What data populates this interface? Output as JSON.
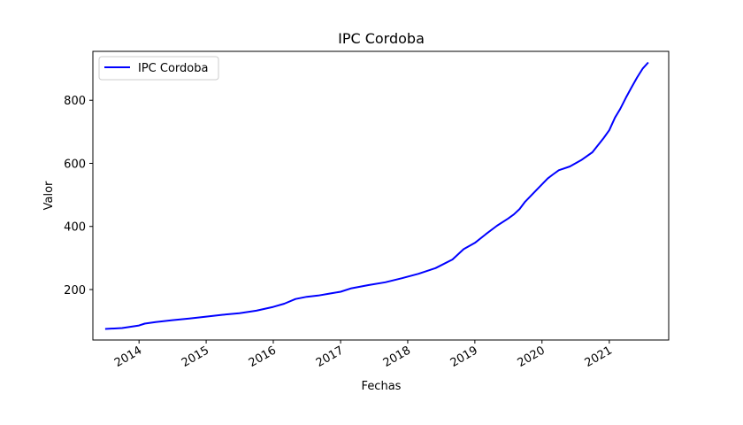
{
  "chart_data": {
    "type": "line",
    "title": "IPC Cordoba",
    "xlabel": "Fechas",
    "ylabel": "Valor",
    "x_tick_labels": [
      "2014",
      "2015",
      "2016",
      "2017",
      "2018",
      "2019",
      "2020",
      "2021"
    ],
    "y_ticks": [
      200,
      400,
      600,
      800
    ],
    "xlim": [
      "2013-04-25",
      "2021-11-20"
    ],
    "ylim": [
      40,
      955
    ],
    "grid": false,
    "legend": "top-left",
    "colors": {
      "line": "#0000ff"
    },
    "series": [
      {
        "name": "IPC Cordoba",
        "points": [
          [
            "2013-07-01",
            75
          ],
          [
            "2013-10-01",
            78
          ],
          [
            "2014-01-01",
            86
          ],
          [
            "2014-02-01",
            92
          ],
          [
            "2014-04-01",
            97
          ],
          [
            "2014-07-01",
            103
          ],
          [
            "2014-10-01",
            108
          ],
          [
            "2015-01-01",
            114
          ],
          [
            "2015-04-01",
            120
          ],
          [
            "2015-07-01",
            125
          ],
          [
            "2015-10-01",
            133
          ],
          [
            "2016-01-01",
            145
          ],
          [
            "2016-03-01",
            155
          ],
          [
            "2016-05-01",
            170
          ],
          [
            "2016-07-01",
            177
          ],
          [
            "2016-09-01",
            181
          ],
          [
            "2016-11-01",
            187
          ],
          [
            "2017-01-01",
            193
          ],
          [
            "2017-03-01",
            204
          ],
          [
            "2017-06-01",
            214
          ],
          [
            "2017-09-01",
            223
          ],
          [
            "2017-12-01",
            236
          ],
          [
            "2018-03-01",
            250
          ],
          [
            "2018-06-01",
            268
          ],
          [
            "2018-09-01",
            295
          ],
          [
            "2018-11-01",
            328
          ],
          [
            "2019-01-01",
            348
          ],
          [
            "2019-03-01",
            375
          ],
          [
            "2019-05-01",
            402
          ],
          [
            "2019-07-01",
            425
          ],
          [
            "2019-08-01",
            438
          ],
          [
            "2019-09-01",
            455
          ],
          [
            "2019-10-01",
            478
          ],
          [
            "2019-12-01",
            515
          ],
          [
            "2020-02-01",
            552
          ],
          [
            "2020-03-01",
            565
          ],
          [
            "2020-04-01",
            578
          ],
          [
            "2020-06-01",
            590
          ],
          [
            "2020-08-01",
            610
          ],
          [
            "2020-10-01",
            635
          ],
          [
            "2020-12-01",
            680
          ],
          [
            "2021-01-01",
            705
          ],
          [
            "2021-02-01",
            745
          ],
          [
            "2021-03-01",
            772
          ],
          [
            "2021-04-01",
            808
          ],
          [
            "2021-05-01",
            840
          ],
          [
            "2021-06-01",
            872
          ],
          [
            "2021-07-01",
            900
          ],
          [
            "2021-08-01",
            920
          ]
        ]
      }
    ]
  }
}
